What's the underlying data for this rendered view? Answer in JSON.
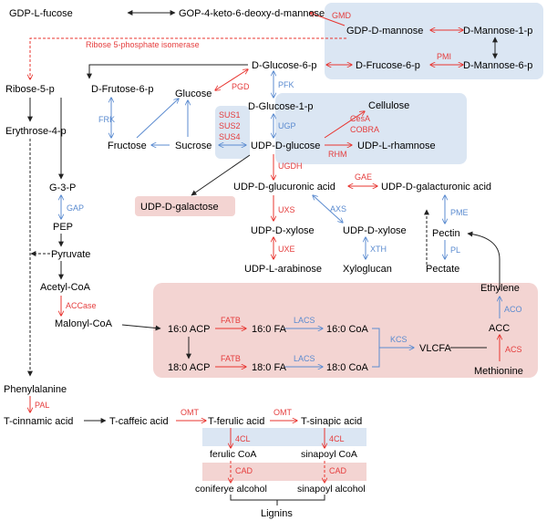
{
  "nodes": {
    "gdp_l_fucose": "GDP-L-fucose",
    "gop_keto": "GOP-4-keto-6-deoxy-d-mannose",
    "gdp_d_mannose": "GDP-D-mannose",
    "d_mannose_1p": "D-Mannose-1-p",
    "d_glucose_6p": "D-Glucose-6-p",
    "d_frucose_6p": "D-Frucose-6-p",
    "d_mannose_6p": "D-Mannose-6-p",
    "ribose_5p": "Ribose-5-p",
    "d_frutose_6p": "D-Frutose-6-p",
    "glucose": "Glucose",
    "d_glucose_1p": "D-Glucose-1-p",
    "cellulose": "Cellulose",
    "erythrose_4p": "Erythrose-4-p",
    "fructose": "Fructose",
    "sucrose": "Sucrose",
    "udp_d_glucose": "UDP-D-glucose",
    "udp_l_rhamnose": "UDP-L-rhamnose",
    "g3p": "G-3-P",
    "udp_d_glucuronic": "UDP-D-glucuronic acid",
    "udp_d_galacturonic": "UDP-D-galacturonic acid",
    "udp_d_galactose": "UDP-D-galactose",
    "pep": "PEP",
    "udp_d_xylose_1": "UDP-D-xylose",
    "udp_d_xylose_2": "UDP-D-xylose",
    "pectin": "Pectin",
    "pyruvate": "Pyruvate",
    "udp_l_arabinose": "UDP-L-arabinose",
    "xyloglucan": "Xyloglucan",
    "pectate": "Pectate",
    "acetyl_coa": "Acetyl-CoA",
    "ethylene": "Ethylene",
    "malonyl_coa": "Malonyl-CoA",
    "acp_16": "16:0 ACP",
    "fa_16": "16:0 FA",
    "coa_16": "16:0 CoA",
    "acc": "ACC",
    "vlcfa": "VLCFA",
    "acp_18": "18:0 ACP",
    "fa_18": "18:0 FA",
    "coa_18": "18:0 CoA",
    "methionine": "Methionine",
    "phenylalanine": "Phenylalanine",
    "t_cinnamic": "T-cinnamic acid",
    "t_caffeic": "T-caffeic acid",
    "t_ferulic": "T-ferulic acid",
    "t_sinapic": "T-sinapic acid",
    "ferulic_coa": "ferulic CoA",
    "sinapoyl_coa": "sinapoyl CoA",
    "coniferye_alcohol": "coniferye alcohol",
    "sinapoyl_alcohol": "sinapoyl alcohol",
    "lignins": "Lignins"
  },
  "enzymes": {
    "gmd": "GMD",
    "ribose_isomerase": "Ribose 5-phosphate isomerase",
    "pmi": "PMI",
    "pgd": "PGD",
    "pfk": "PFK",
    "frk": "FRK",
    "sus1": "SUS1",
    "sus2": "SUS2",
    "sus4": "SUS4",
    "ugp": "UGP",
    "cesa": "CesA",
    "cobra": "COBRA",
    "rhm": "RHM",
    "ugdh": "UGDH",
    "gae": "GAE",
    "gap": "GAP",
    "uxs": "UXS",
    "axs": "AXS",
    "pme": "PME",
    "uxe": "UXE",
    "xth": "XTH",
    "pl": "PL",
    "accase": "ACCase",
    "aco": "ACO",
    "fatb_1": "FATB",
    "lacs_1": "LACS",
    "kcs": "KCS",
    "acs": "ACS",
    "fatb_2": "FATB",
    "lacs_2": "LACS",
    "pal": "PAL",
    "omt_1": "OMT",
    "omt_2": "OMT",
    "cl4_1": "4CL",
    "cl4_2": "4CL",
    "cad_1": "CAD",
    "cad_2": "CAD"
  },
  "colors": {
    "red": "#e8342f",
    "blue": "#5b8bd0",
    "blue_panel": "#dbe6f3",
    "red_panel": "#f3d4d2"
  }
}
